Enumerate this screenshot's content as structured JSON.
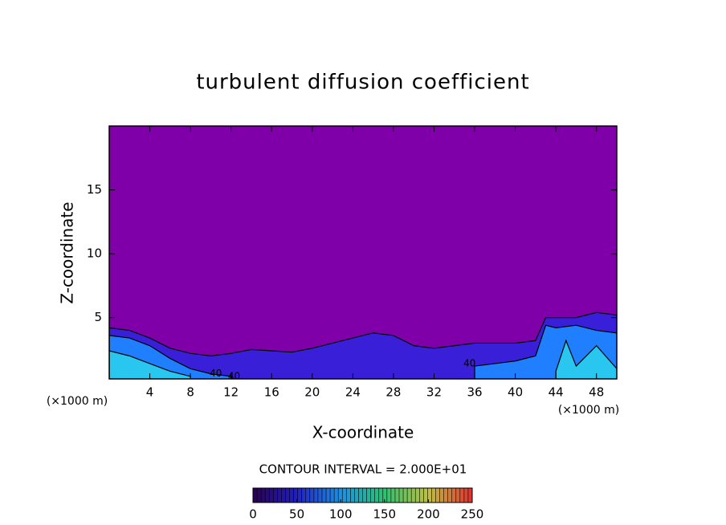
{
  "chart_data": {
    "type": "contour",
    "title": "turbulent diffusion coefficient",
    "xlabel": "X-coordinate",
    "ylabel": "Z-coordinate",
    "xunit": "(×1000 m)",
    "info": "CONTOUR INTERVAL = 2.000E+01",
    "xlim": [
      0,
      50
    ],
    "ylim": [
      0.2,
      20
    ],
    "xticks": [
      4,
      8,
      12,
      16,
      20,
      24,
      28,
      32,
      36,
      40,
      44,
      48
    ],
    "yticks": [
      5,
      10,
      15
    ],
    "background_color": "#7f00a8",
    "contours": [
      {
        "level": 20,
        "color": "#3a1fd8",
        "x": [
          0,
          2,
          4,
          6,
          8,
          10,
          12,
          14,
          16,
          18,
          20,
          22,
          24,
          26,
          28,
          30,
          32,
          34,
          36,
          38,
          40,
          42,
          43,
          44,
          46,
          48,
          50
        ],
        "z": [
          4.2,
          4.0,
          3.4,
          2.6,
          2.2,
          2.0,
          2.2,
          2.5,
          2.4,
          2.3,
          2.6,
          3.0,
          3.4,
          3.8,
          3.6,
          2.8,
          2.6,
          2.8,
          3.0,
          3.0,
          3.0,
          3.2,
          5.0,
          5.0,
          5.0,
          5.4,
          5.2
        ]
      },
      {
        "level": 40,
        "color": "#1f7fff",
        "x": [
          0,
          2,
          4,
          6,
          8,
          10,
          12
        ],
        "z": [
          3.6,
          3.4,
          2.8,
          1.8,
          1.0,
          0.6,
          0.4
        ]
      },
      {
        "level": 40,
        "color": "#1f7fff",
        "x": [
          36,
          38,
          40,
          42,
          43,
          44,
          46,
          48,
          50
        ],
        "z": [
          1.2,
          1.4,
          1.6,
          2.0,
          4.4,
          4.2,
          4.4,
          4.0,
          3.8
        ]
      },
      {
        "level": 60,
        "color": "#29c7f0",
        "x": [
          0,
          2,
          4,
          6,
          8
        ],
        "z": [
          2.4,
          2.0,
          1.4,
          0.8,
          0.4
        ]
      },
      {
        "level": 60,
        "color": "#29c7f0",
        "x": [
          44,
          45,
          46,
          48,
          50
        ],
        "z": [
          0.8,
          3.2,
          1.2,
          2.8,
          1.0
        ]
      }
    ],
    "contour_labels": [
      {
        "value": 40,
        "x": 10.5,
        "z": 0.6
      },
      {
        "value": 40,
        "x": 12.3,
        "z": 0.4
      },
      {
        "value": 40,
        "x": 35.5,
        "z": 1.4
      }
    ],
    "colorbar": {
      "clim": [
        0,
        250
      ],
      "ticks": [
        0,
        50,
        100,
        150,
        200,
        250
      ],
      "colors": [
        "#2a0050",
        "#2020c0",
        "#2090e0",
        "#30c070",
        "#c0c040",
        "#e03030"
      ]
    }
  }
}
